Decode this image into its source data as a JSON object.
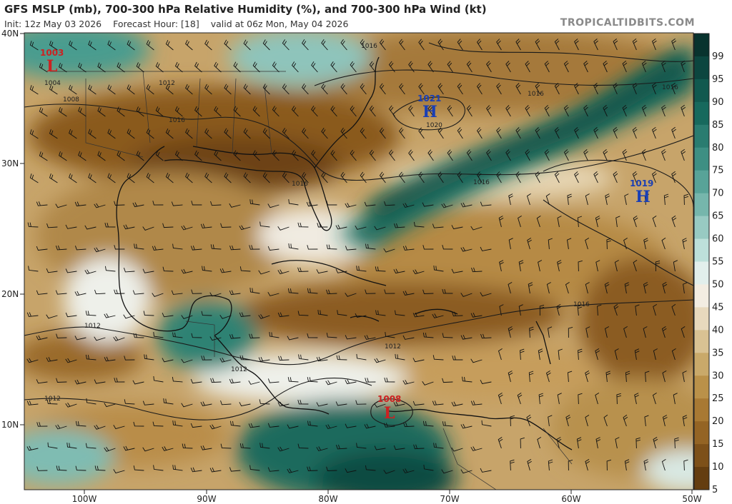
{
  "header": {
    "title": "GFS MSLP (mb), 700-300 hPa Relative Humidity (%), and 700-300 hPa Wind (kt)",
    "init": "Init: 12z May 03 2026",
    "forecast_hour": "Forecast Hour: [18]",
    "valid": "valid at 06z Mon, May 04 2026",
    "brand": "TROPICALTIDBITS.COM"
  },
  "axes": {
    "lat_labels": [
      "40N",
      "30N",
      "20N",
      "10N"
    ],
    "lon_labels": [
      "100W",
      "90W",
      "80W",
      "70W",
      "60W",
      "50W"
    ]
  },
  "colorbar": {
    "labels": [
      "99",
      "95",
      "90",
      "85",
      "80",
      "75",
      "70",
      "65",
      "60",
      "55",
      "50",
      "45",
      "40",
      "35",
      "30",
      "25",
      "20",
      "15",
      "10",
      "5"
    ],
    "colors": [
      "#08332e",
      "#0c463f",
      "#11594f",
      "#17695d",
      "#2a7c70",
      "#3e8f83",
      "#58a398",
      "#76b6ac",
      "#98cac2",
      "#bde0da",
      "#e2efec",
      "#f3ede2",
      "#e8d9bd",
      "#d9c293",
      "#c9a96a",
      "#ba9149",
      "#a87933",
      "#946424",
      "#7d5019",
      "#643d10"
    ]
  },
  "pressure_centers": [
    {
      "type": "L",
      "value": "1003",
      "color": "#cc2222"
    },
    {
      "type": "H",
      "value": "1021",
      "color": "#1a3fb5"
    },
    {
      "type": "H",
      "value": "1019",
      "color": "#1a3fb5"
    },
    {
      "type": "L",
      "value": "1008",
      "color": "#cc2222"
    }
  ],
  "isobar_labels": [
    "1016",
    "1012",
    "1004",
    "1008",
    "1016",
    "1016",
    "1016",
    "1020",
    "1016",
    "1016",
    "1016",
    "1016",
    "1012",
    "1012",
    "1012",
    "1012"
  ]
}
